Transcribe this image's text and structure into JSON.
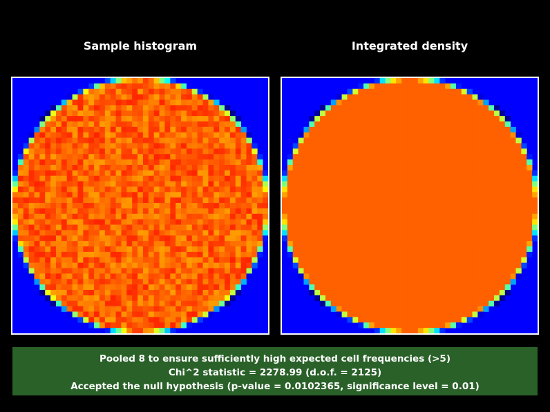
{
  "chart_data": [
    {
      "type": "heatmap",
      "title": "Sample histogram",
      "grid_cells": [
        47,
        47
      ],
      "description_values": {
        "inside_disk_mean_level": 0.78,
        "inside_disk_noise": 0.06,
        "outside_level": 0.0,
        "edge_falloff": "partial-coverage cells along the circle boundary show lower values (yellow/green/cyan)"
      },
      "colormap": "jet",
      "grid": false,
      "legend": "none"
    },
    {
      "type": "heatmap",
      "title": "Integrated density",
      "grid_cells": [
        47,
        47
      ],
      "description_values": {
        "inside_disk_mean_level": 0.78,
        "inside_disk_noise": 0.0,
        "outside_level": 0.0,
        "edge_falloff": "partial-coverage cells along the circle boundary show lower values (yellow/green/cyan)"
      },
      "colormap": "jet",
      "grid": false,
      "legend": "none"
    }
  ],
  "status": {
    "line1": "Pooled 8 to ensure sufficiently high expected cell frequencies (>5)",
    "line2": "Chi^2 statistic = 2278.99 (d.o.f. = 2125)",
    "line3": "Accepted the null hypothesis (p-value = 0.0102365, significance level = 0.01)"
  },
  "colors": {
    "background": "#000000",
    "outside": "#0000ff",
    "status_box": "#2a6129",
    "frame": "#ffffff"
  }
}
